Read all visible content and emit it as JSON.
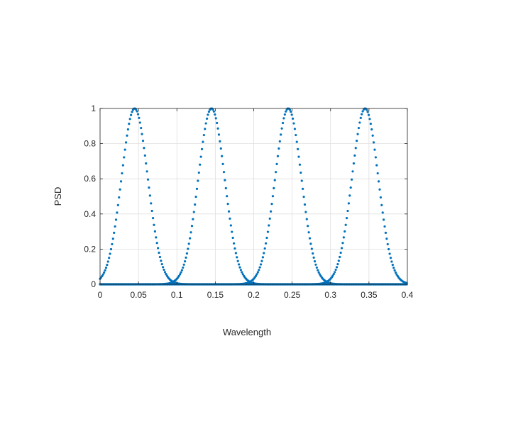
{
  "chart_data": {
    "type": "scatter",
    "title": "",
    "xlabel": "Wavelength",
    "ylabel": "PSD",
    "xlim": [
      0,
      0.4
    ],
    "ylim": [
      0,
      1
    ],
    "xticks": [
      0,
      0.05,
      0.1,
      0.15,
      0.2,
      0.25,
      0.3,
      0.35,
      0.4
    ],
    "xtick_labels": [
      "0",
      "0.05",
      "0.1",
      "0.15",
      "0.2",
      "0.25",
      "0.3",
      "0.35",
      "0.4"
    ],
    "yticks": [
      0,
      0.2,
      0.4,
      0.6,
      0.8,
      1
    ],
    "ytick_labels": [
      "0",
      "0.2",
      "0.4",
      "0.6",
      "0.8",
      "1"
    ],
    "grid": true,
    "legend": "none",
    "marker_color": "#0072BD",
    "series": [
      {
        "peak_x": 0.045,
        "peak_y": 1,
        "width_sigma": 0.0171
      },
      {
        "peak_x": 0.145,
        "peak_y": 1,
        "width_sigma": 0.0171
      },
      {
        "peak_x": 0.245,
        "peak_y": 1,
        "width_sigma": 0.0171
      },
      {
        "peak_x": 0.345,
        "peak_y": 1,
        "width_sigma": 0.0171
      }
    ],
    "x_step": 0.0013
  }
}
